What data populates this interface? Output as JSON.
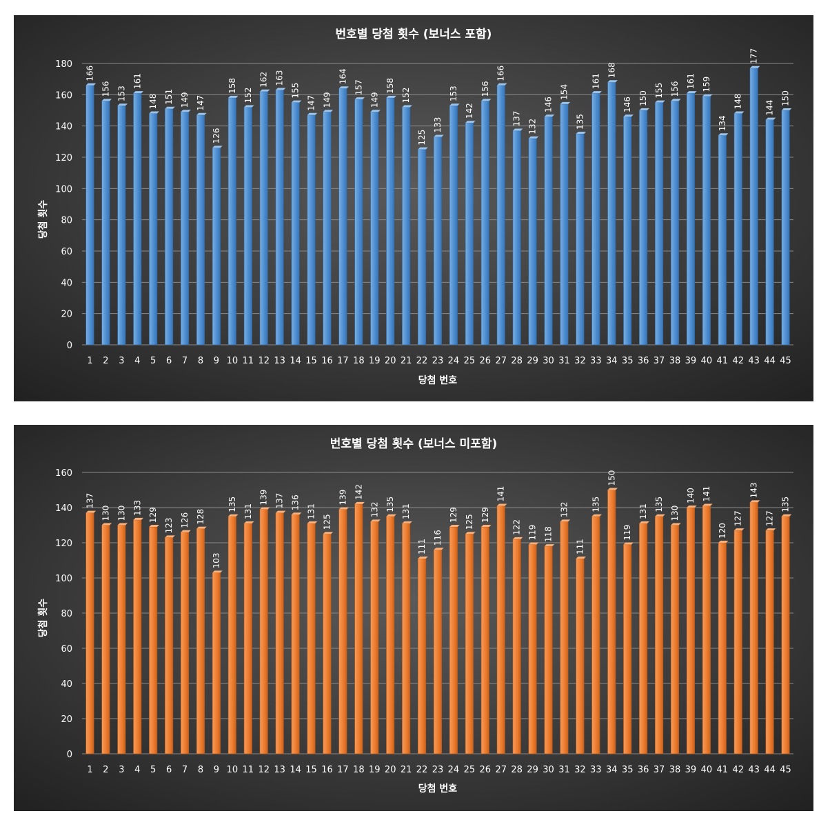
{
  "colors": {
    "background_center": "#5a5a5a",
    "background_edge": "#222222",
    "series_top": "#5b9bd5",
    "series_bottom": "#ed7d31",
    "text": "#ffffff"
  },
  "chart_data": [
    {
      "type": "bar",
      "title": "번호별 당첨 횟수 (보너스 포함)",
      "xlabel": "당첨 번호",
      "ylabel": "당첨 횟수",
      "ylim": [
        0,
        180
      ],
      "yticks": [
        0,
        20,
        40,
        60,
        80,
        100,
        120,
        140,
        160,
        180
      ],
      "grid": true,
      "categories": [
        "1",
        "2",
        "3",
        "4",
        "5",
        "6",
        "7",
        "8",
        "9",
        "10",
        "11",
        "12",
        "13",
        "14",
        "15",
        "16",
        "17",
        "18",
        "19",
        "20",
        "21",
        "22",
        "23",
        "24",
        "25",
        "26",
        "27",
        "28",
        "29",
        "30",
        "31",
        "32",
        "33",
        "34",
        "35",
        "36",
        "37",
        "38",
        "39",
        "40",
        "41",
        "42",
        "43",
        "44",
        "45"
      ],
      "values": [
        166,
        156,
        153,
        161,
        148,
        151,
        149,
        147,
        126,
        158,
        152,
        162,
        163,
        155,
        147,
        149,
        164,
        157,
        149,
        158,
        152,
        125,
        133,
        153,
        142,
        156,
        166,
        137,
        132,
        146,
        154,
        135,
        161,
        168,
        146,
        150,
        155,
        156,
        161,
        159,
        134,
        148,
        177,
        144,
        150
      ]
    },
    {
      "type": "bar",
      "title": "번호별 당첨 횟수 (보너스 미포함)",
      "xlabel": "당첨 번호",
      "ylabel": "당첨 횟수",
      "ylim": [
        0,
        160
      ],
      "yticks": [
        0,
        20,
        40,
        60,
        80,
        100,
        120,
        140,
        160
      ],
      "grid": true,
      "categories": [
        "1",
        "2",
        "3",
        "4",
        "5",
        "6",
        "7",
        "8",
        "9",
        "10",
        "11",
        "12",
        "13",
        "14",
        "15",
        "16",
        "17",
        "18",
        "19",
        "20",
        "21",
        "22",
        "23",
        "24",
        "25",
        "26",
        "27",
        "28",
        "29",
        "30",
        "31",
        "32",
        "33",
        "34",
        "35",
        "36",
        "37",
        "38",
        "39",
        "40",
        "41",
        "42",
        "43",
        "44",
        "45"
      ],
      "values": [
        137,
        130,
        130,
        133,
        129,
        123,
        126,
        128,
        103,
        135,
        131,
        139,
        137,
        136,
        131,
        125,
        139,
        142,
        132,
        135,
        131,
        111,
        116,
        129,
        125,
        129,
        141,
        122,
        119,
        118,
        132,
        111,
        135,
        150,
        119,
        131,
        135,
        130,
        140,
        141,
        120,
        127,
        143,
        127,
        135
      ]
    }
  ]
}
